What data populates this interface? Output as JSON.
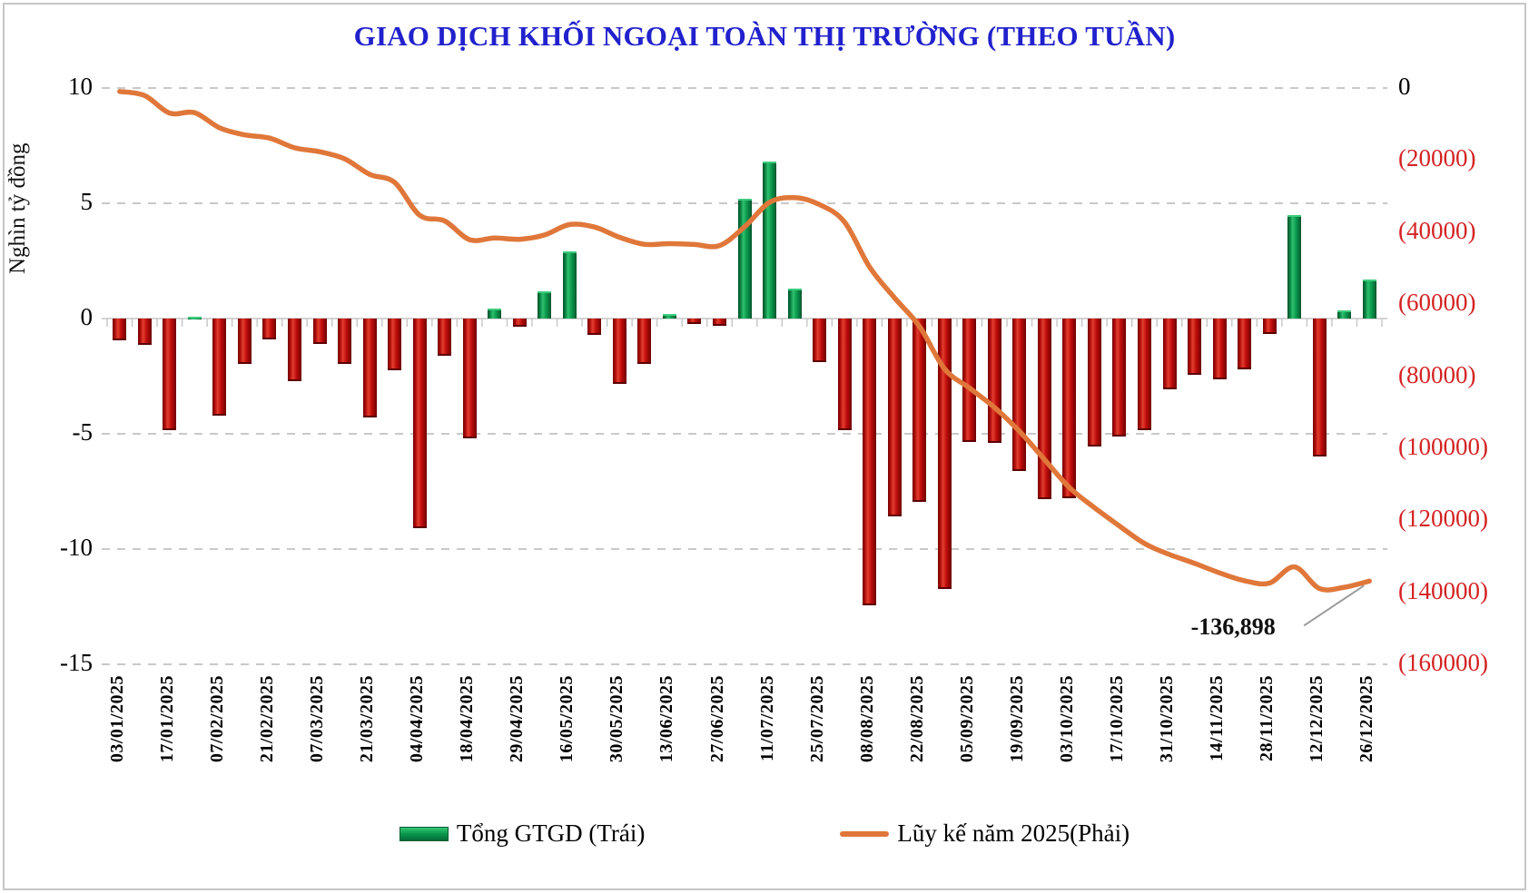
{
  "title": "GIAO DỊCH KHỐI NGOẠI TOÀN THỊ TRƯỜNG (THEO TUẦN)",
  "chart_data": {
    "type": "combo_bar_line",
    "title": "GIAO DỊCH KHỐI NGOẠI TOÀN THỊ TRƯỜNG (THEO TUẦN)",
    "left_axis": {
      "title": "Nghìn tỷ đồng",
      "tick_labels": [
        "10",
        "5",
        "0",
        "-5",
        "-10",
        "-15"
      ],
      "tick_values": [
        10,
        5,
        0,
        -5,
        -10,
        -15
      ],
      "range": [
        -15,
        10
      ],
      "grid": "dashed"
    },
    "right_axis": {
      "tick_labels": [
        "0",
        "(20000)",
        "(40000)",
        "(60000)",
        "(80000)",
        "(100000)",
        "(120000)",
        "(140000)",
        "(160000)"
      ],
      "tick_values": [
        0,
        -20000,
        -40000,
        -60000,
        -80000,
        -100000,
        -120000,
        -140000,
        -160000
      ],
      "range": [
        -160000,
        0
      ],
      "negative_label_color": "#d42323"
    },
    "x_tick_labels": [
      "03/01/2025",
      "17/01/2025",
      "07/02/2025",
      "21/02/2025",
      "07/03/2025",
      "21/03/2025",
      "04/04/2025",
      "18/04/2025",
      "29/04/2025",
      "16/05/2025",
      "30/05/2025",
      "13/06/2025",
      "27/06/2025",
      "11/07/2025",
      "25/07/2025",
      "08/08/2025",
      "22/08/2025",
      "05/09/2025",
      "19/09/2025",
      "03/10/2025",
      "17/10/2025",
      "31/10/2025",
      "14/11/2025",
      "28/11/2025",
      "12/12/2025",
      "26/12/2025"
    ],
    "x_label_every_n_bars": 2,
    "bar_series": {
      "name": "Tổng GTGD (Trái)",
      "axis": "left",
      "values": [
        -0.95,
        -1.15,
        -4.85,
        0.1,
        -4.2,
        -1.95,
        -0.9,
        -2.7,
        -1.1,
        -1.95,
        -4.3,
        -2.25,
        -9.1,
        -1.6,
        -5.2,
        0.45,
        -0.35,
        1.2,
        2.9,
        -0.7,
        -2.85,
        -1.95,
        0.2,
        -0.25,
        -0.3,
        5.2,
        6.8,
        1.3,
        -1.9,
        -4.85,
        -12.45,
        -8.6,
        -7.95,
        -11.75,
        -5.35,
        -5.4,
        -6.6,
        -7.85,
        -7.8,
        -5.55,
        -5.1,
        -4.85,
        -3.05,
        -2.45,
        -2.65,
        -2.2,
        -0.65,
        4.5,
        -6.0,
        0.35,
        1.7
      ]
    },
    "line_series": {
      "name": "Lũy kế năm 2025(Phải)",
      "axis": "right",
      "values": [
        -950,
        -2100,
        -6950,
        -6850,
        -11050,
        -13000,
        -13900,
        -16600,
        -17700,
        -19650,
        -23950,
        -26200,
        -35300,
        -36900,
        -42100,
        -41650,
        -42000,
        -40800,
        -37900,
        -38600,
        -41450,
        -43400,
        -43200,
        -43450,
        -43750,
        -38550,
        -31750,
        -30450,
        -32350,
        -37200,
        -49650,
        -58250,
        -66200,
        -77950,
        -83300,
        -88700,
        -95300,
        -103150,
        -110950,
        -116500,
        -121600,
        -126450,
        -129500,
        -131950,
        -134600,
        -136800,
        -137450,
        -132950,
        -138950,
        -138600,
        -136898
      ]
    },
    "annotation": {
      "text": "-136,898",
      "value": -136898
    },
    "legend": [
      {
        "label": "Tổng GTGD (Trái)",
        "swatch": "green-bar"
      },
      {
        "label": "Lũy kế năm 2025(Phải)",
        "swatch": "orange-line"
      }
    ],
    "colors": {
      "bar_positive": "#0b9b4e",
      "bar_negative": "#c00d0d",
      "line": "#e0773a",
      "title": "#2121cd",
      "right_axis_negative": "#d42323",
      "gridline": "#c9c9c9",
      "axis_line": "#c6c6c6",
      "leader_line": "#9a9a9a"
    }
  }
}
